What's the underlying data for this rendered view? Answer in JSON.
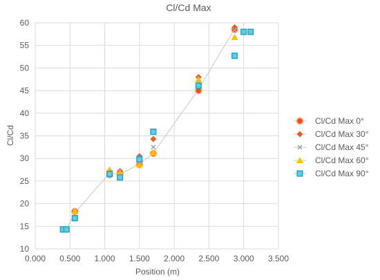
{
  "chart_data": {
    "type": "scatter",
    "title": "Cl/Cd Max",
    "xlabel": "Position (m)",
    "ylabel": "Cl/Cd",
    "xlim": [
      0,
      3.5
    ],
    "ylim": [
      10,
      60
    ],
    "x_ticks": [
      0,
      0.5,
      1.0,
      1.5,
      2.0,
      2.5,
      3.0,
      3.5
    ],
    "x_tick_labels": [
      "0.000",
      "0.500",
      "1.000",
      "1.500",
      "2.000",
      "2.500",
      "3.000",
      "3.500"
    ],
    "y_ticks": [
      10,
      15,
      20,
      25,
      30,
      35,
      40,
      45,
      50,
      55,
      60
    ],
    "y_tick_labels": [
      "10",
      "15",
      "20",
      "25",
      "30",
      "35",
      "40",
      "45",
      "50",
      "55",
      "60"
    ],
    "grid": true,
    "legend_position": "right",
    "trendline": {
      "color": "#c8c8c8",
      "x": [
        0.4,
        0.45,
        0.57,
        1.07,
        1.22,
        1.5,
        1.7,
        2.35,
        2.87
      ],
      "y": [
        14.3,
        14.3,
        18.0,
        26.7,
        26.5,
        28.8,
        31.2,
        45.3,
        58.7
      ]
    },
    "series": [
      {
        "name": "Cl/Cd Max 0°",
        "marker": "circle",
        "color": "#ff4a1c",
        "edge": "#f4b183",
        "x": [
          0.57,
          1.07,
          1.22,
          1.5,
          1.7,
          2.35,
          2.87
        ],
        "y": [
          18.3,
          26.4,
          26.7,
          28.6,
          31.1,
          45.0,
          58.5
        ]
      },
      {
        "name": "Cl/Cd Max 30°",
        "marker": "diamond",
        "color": "#f05a28",
        "x": [
          0.57,
          1.07,
          1.22,
          1.5,
          1.7,
          2.35,
          2.87
        ],
        "y": [
          18.3,
          27.2,
          27.2,
          30.5,
          34.3,
          48.0,
          59.0
        ]
      },
      {
        "name": "Cl/Cd Max 45°",
        "marker": "x",
        "color": "#a5a5a5",
        "x": [
          0.57,
          1.07,
          1.22,
          1.5,
          1.7,
          2.35,
          2.87
        ],
        "y": [
          18.3,
          26.6,
          26.4,
          29.8,
          32.5,
          47.0,
          58.4
        ]
      },
      {
        "name": "Cl/Cd Max 60°",
        "marker": "triangle",
        "color": "#ffc000",
        "x": [
          0.57,
          1.07,
          1.22,
          1.5,
          1.7,
          2.35,
          2.87
        ],
        "y": [
          18.3,
          27.5,
          26.9,
          28.7,
          31.3,
          47.5,
          56.8
        ]
      },
      {
        "name": "Cl/Cd Max 90°",
        "marker": "square",
        "color": "#5ad0e6",
        "edge": "#2e9fb8",
        "x": [
          0.4,
          0.45,
          0.57,
          1.07,
          1.22,
          1.5,
          1.7,
          2.35,
          2.87,
          3.0,
          3.1
        ],
        "y": [
          14.3,
          14.3,
          16.8,
          26.6,
          25.8,
          29.8,
          35.9,
          46.1,
          52.7,
          58.0,
          58.0
        ]
      }
    ]
  }
}
